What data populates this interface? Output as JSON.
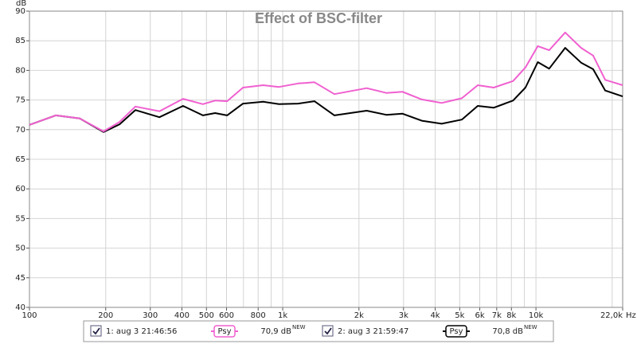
{
  "chart_data": {
    "type": "line",
    "title": "Effect of BSC-filter",
    "ylabel": "dB",
    "xlabel": "Hz",
    "xscale": "log",
    "grid": true,
    "x": [
      100,
      127,
      158,
      196,
      227,
      262,
      326,
      404,
      484,
      541,
      603,
      697,
      837,
      967,
      1150,
      1334,
      1600,
      2146,
      2566,
      2970,
      3540,
      4245,
      5098,
      5890,
      6810,
      8120,
      9090,
      10170,
      11280,
      13040,
      15080,
      16820,
      18770,
      22000
    ],
    "series": [
      {
        "name": "1: aug 3 21:46:56",
        "color": "#f060d0",
        "checked": true,
        "smoothing": "Psy",
        "level": "70,9 dB",
        "badge": "NEW",
        "values": [
          70.8,
          72.4,
          71.9,
          69.7,
          71.3,
          73.9,
          73.1,
          75.2,
          74.3,
          74.9,
          74.8,
          77.1,
          77.5,
          77.2,
          77.8,
          78.0,
          76.0,
          77.0,
          76.2,
          76.4,
          75.1,
          74.5,
          75.3,
          77.5,
          77.1,
          78.2,
          80.5,
          84.1,
          83.4,
          86.4,
          83.8,
          82.5,
          78.4,
          77.5
        ]
      },
      {
        "name": "2: aug 3 21:59:47",
        "color": "#000000",
        "checked": true,
        "smoothing": "Psy",
        "level": "70,8 dB",
        "badge": "NEW",
        "values": [
          70.8,
          72.4,
          71.9,
          69.6,
          70.9,
          73.3,
          72.1,
          74.0,
          72.4,
          72.8,
          72.4,
          74.4,
          74.7,
          74.3,
          74.4,
          74.8,
          72.4,
          73.2,
          72.5,
          72.7,
          71.5,
          71.0,
          71.7,
          74.0,
          73.7,
          74.9,
          77.1,
          81.4,
          80.3,
          83.8,
          81.3,
          80.2,
          76.6,
          75.6
        ]
      }
    ],
    "xlim": [
      100,
      22000
    ],
    "xticks": [
      100,
      200,
      300,
      400,
      500,
      600,
      800,
      {
        "value": 1000,
        "label": "1k"
      },
      {
        "value": 2000,
        "label": "2k"
      },
      {
        "value": 3000,
        "label": "3k"
      },
      {
        "value": 4000,
        "label": "4k"
      },
      {
        "value": 5000,
        "label": "5k"
      },
      {
        "value": 6000,
        "label": "6k"
      },
      {
        "value": 7000,
        "label": "7k"
      },
      {
        "value": 8000,
        "label": "8k"
      },
      {
        "value": 10000,
        "label": "10k"
      },
      {
        "value": 22000,
        "label": "22,0k"
      }
    ],
    "ylim": [
      40,
      90
    ],
    "yticks": [
      40,
      45,
      50,
      55,
      60,
      65,
      70,
      75,
      80,
      85,
      90
    ]
  }
}
